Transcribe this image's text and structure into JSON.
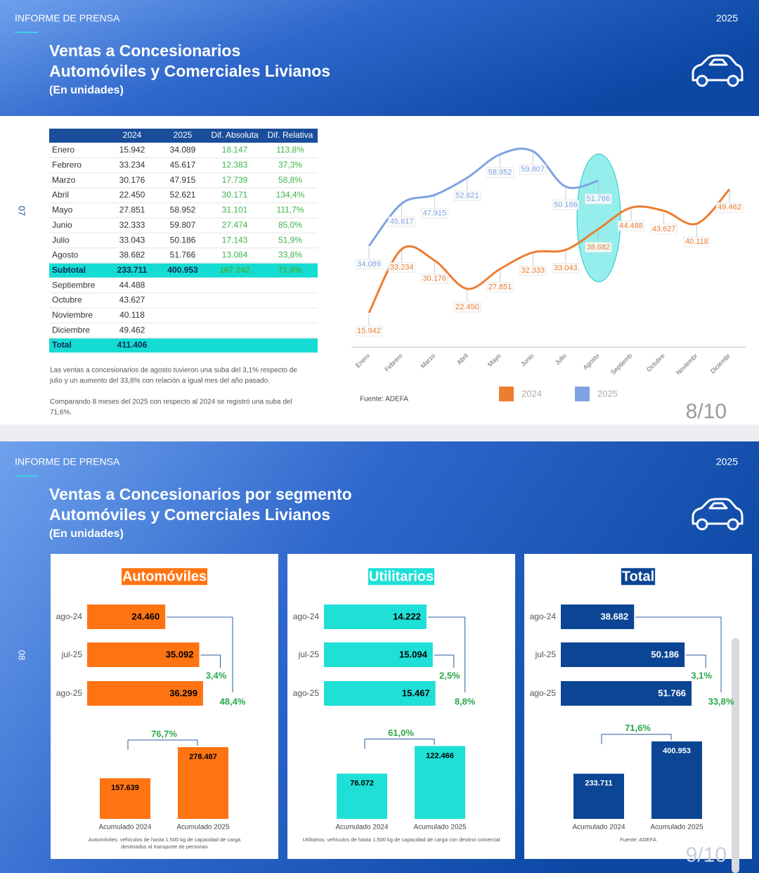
{
  "slides": [
    {
      "header": "INFORME DE PRENSA",
      "year": "2025",
      "title": [
        "Ventas a Concesionarios",
        "Automóviles y Comerciales Livianos"
      ],
      "subtitle": "(En unidades)",
      "side_number": "07",
      "page": "8/10",
      "table": {
        "columns": [
          "2024",
          "2025",
          "Dif. Absoluta",
          "Dif. Relativa"
        ],
        "rows": [
          [
            "Enero",
            "15.942",
            "34.089",
            "18.147",
            "113,8%"
          ],
          [
            "Febrero",
            "33.234",
            "45.617",
            "12.383",
            "37,3%"
          ],
          [
            "Marzo",
            "30.176",
            "47.915",
            "17.739",
            "58,8%"
          ],
          [
            "Abril",
            "22.450",
            "52.621",
            "30.171",
            "134,4%"
          ],
          [
            "Mayo",
            "27.851",
            "58.952",
            "31.101",
            "111,7%"
          ],
          [
            "Junio",
            "32.333",
            "59.807",
            "27.474",
            "85,0%"
          ],
          [
            "Julio",
            "33.043",
            "50.186",
            "17.143",
            "51,9%"
          ],
          [
            "Agosto",
            "38.682",
            "51.766",
            "13.084",
            "33,8%"
          ],
          [
            "Subtotal",
            "233.711",
            "400.953",
            "167.242",
            "71,6%"
          ],
          [
            "Septiembre",
            "44.488"
          ],
          [
            "Octubre",
            "43.627"
          ],
          [
            "Noviembre",
            "40.118"
          ],
          [
            "Diciembre",
            "49.462"
          ],
          [
            "Total",
            "411.406"
          ]
        ],
        "highlight_rows": [
          8,
          13
        ]
      },
      "notes": [
        [
          "Las ventas a concesionarios de agosto tuvieron una suba del 3,1% respecto de",
          "julio y un aumento del 33,8% con relación a igual mes del año pasado."
        ],
        [
          "Comparando 8 meses del 2025 con respecto al 2024 se registró una suba del",
          "71,6%."
        ]
      ],
      "source": "Fuente: ADEFA"
    },
    {
      "header": "INFORME DE PRENSA",
      "year": "2025",
      "title": [
        "Ventas a Concesionarios por segmento",
        "Automóviles y Comerciales Livianos"
      ],
      "subtitle": "(En unidades)",
      "side_number": "08",
      "page": "9/10",
      "footnotes": [
        [
          "Automóviles: vehículos de hasta 1.500 kg de capacidad de carga",
          "destinados al transporte de personas"
        ],
        [
          "Utilitarios: vehículos de hasta 1.500 kg de capacidad de carga con destino comercial"
        ],
        [
          "Fuente: ADEFA"
        ]
      ]
    }
  ],
  "chart_data": [
    {
      "type": "line",
      "categories": [
        "Enero",
        "Febrero",
        "Marzo",
        "Abril",
        "Mayo",
        "Junio",
        "Julio",
        "Agosto",
        "Septiemb",
        "Octubre",
        "Noviembr",
        "Diciembr"
      ],
      "series": [
        {
          "name": "2024",
          "color": "#ed7d31",
          "values": [
            15942,
            33234,
            30176,
            22450,
            27851,
            32333,
            33043,
            38682,
            44488,
            43627,
            40118,
            49462
          ],
          "value_labels": [
            "15.942",
            "33.234",
            "30.176",
            "22.450",
            "27.851",
            "32.333",
            "33.043",
            "38.682",
            "44.488",
            "43.627",
            "40.118",
            "49.462"
          ]
        },
        {
          "name": "2025",
          "color": "#7ea3e0",
          "values": [
            34089,
            45617,
            47915,
            52621,
            58952,
            59807,
            50186,
            51766,
            null,
            null,
            null,
            null
          ],
          "value_labels": [
            "34.089",
            "45.617",
            "47.915",
            "52.621",
            "58.952",
            "59.807",
            "50.186",
            "51.766",
            null,
            null,
            null,
            null
          ]
        }
      ],
      "ylim": [
        7000,
        66500
      ]
    },
    {
      "type": "bar",
      "title": "Automóviles",
      "color": "#ff7412",
      "label_color": "#000000",
      "categories": [
        "ago-24",
        "jul-25",
        "ago-25"
      ],
      "values": [
        24460,
        35092,
        36299
      ],
      "value_labels": [
        "24.460",
        "35.092",
        "36.299"
      ],
      "xlim": [
        0,
        44000
      ],
      "annotations": [
        "3,4%",
        "48,4%"
      ],
      "totals": {
        "categories": [
          "Acumulado 2024",
          "Acumulado 2025"
        ],
        "values": [
          157639,
          278487
        ],
        "value_labels": [
          "157.639",
          "278.487"
        ],
        "ylim": [
          0,
          300000
        ],
        "change": "76,7%"
      }
    },
    {
      "type": "bar",
      "title": "Utilitarios",
      "color": "#1ee0d7",
      "label_color": "#000000",
      "categories": [
        "ago-24",
        "jul-25",
        "ago-25"
      ],
      "values": [
        14222,
        15094,
        15467
      ],
      "value_labels": [
        "14.222",
        "15.094",
        "15.467"
      ],
      "xlim": [
        0,
        19500
      ],
      "annotations": [
        "2,5%",
        "8,8%"
      ],
      "totals": {
        "categories": [
          "Acumulado 2024",
          "Acumulado 2025"
        ],
        "values": [
          76072,
          122466
        ],
        "value_labels": [
          "76.072",
          "122.466"
        ],
        "ylim": [
          0,
          130000
        ],
        "change": "61,0%"
      }
    },
    {
      "type": "bar",
      "title": "Total",
      "color": "#0b4594",
      "label_color": "#ffffff",
      "categories": [
        "ago-24",
        "jul-25",
        "ago-25"
      ],
      "values": [
        38682,
        50186,
        51766
      ],
      "value_labels": [
        "38.682",
        "50.186",
        "51.766"
      ],
      "xlim": [
        22000,
        54000
      ],
      "annotations": [
        "3,1%",
        "33,8%"
      ],
      "totals": {
        "categories": [
          "Acumulado 2024",
          "Acumulado 2025"
        ],
        "values": [
          233711,
          400953
        ],
        "value_labels": [
          "233.711",
          "400.953"
        ],
        "ylim": [
          0,
          400000
        ],
        "change": "71,6%"
      }
    }
  ]
}
